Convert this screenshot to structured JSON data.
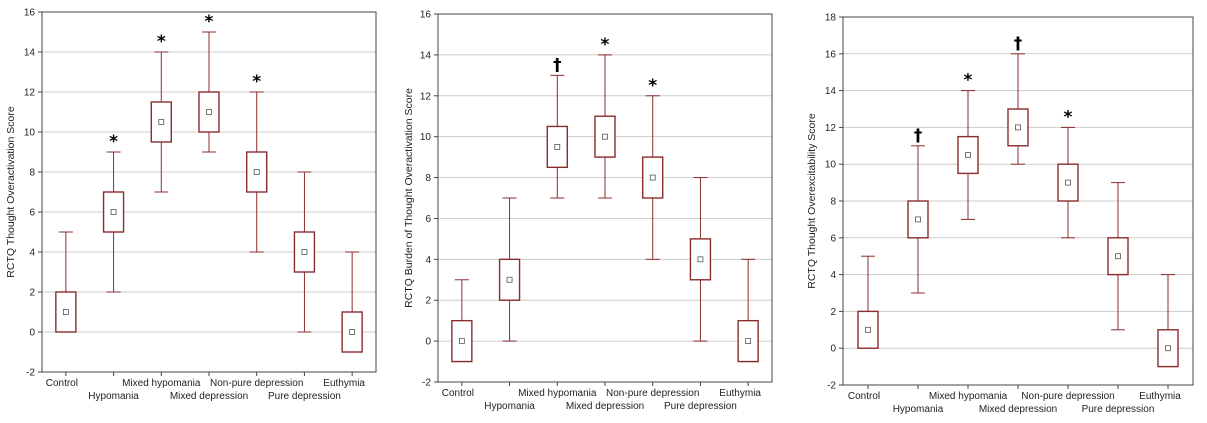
{
  "chart_data": [
    {
      "type": "box",
      "ylabel": "RCTQ Thought Overactivation Score",
      "ylim": [
        -2,
        16
      ],
      "yticks": [
        -2,
        0,
        2,
        4,
        6,
        8,
        10,
        12,
        14,
        16
      ],
      "categories": [
        "Control",
        "Hypomania",
        "Mixed hypomania",
        "Mixed depression",
        "Non-pure depression",
        "Pure depression",
        "Euthymia"
      ],
      "boxes": [
        {
          "min": 0,
          "q1": 0,
          "median": 1,
          "q3": 2,
          "max": 5,
          "annotation": ""
        },
        {
          "min": 2,
          "q1": 5,
          "median": 6,
          "q3": 7,
          "max": 9,
          "annotation": "*"
        },
        {
          "min": 7,
          "q1": 9.5,
          "median": 10.5,
          "q3": 11.5,
          "max": 14,
          "annotation": "*"
        },
        {
          "min": 9,
          "q1": 10,
          "median": 11,
          "q3": 12,
          "max": 15,
          "annotation": "*"
        },
        {
          "min": 4,
          "q1": 7,
          "median": 8,
          "q3": 9,
          "max": 12,
          "annotation": "*"
        },
        {
          "min": 0,
          "q1": 3,
          "median": 4,
          "q3": 5,
          "max": 8,
          "annotation": ""
        },
        {
          "min": -1,
          "q1": -1,
          "median": 0,
          "q3": 1,
          "max": 4,
          "annotation": ""
        }
      ],
      "grid": true,
      "colors": {
        "box": "#8b2c2c",
        "grid": "#cccccc",
        "axis": "#444444"
      }
    },
    {
      "type": "box",
      "ylabel": "RCTQ Burden of Thought Overactivation Score",
      "ylim": [
        -2,
        16
      ],
      "yticks": [
        -2,
        0,
        2,
        4,
        6,
        8,
        10,
        12,
        14,
        16
      ],
      "categories": [
        "Control",
        "Hypomania",
        "Mixed hypomania",
        "Mixed depression",
        "Non-pure depression",
        "Pure depression",
        "Euthymia"
      ],
      "boxes": [
        {
          "min": -1,
          "q1": -1,
          "median": 0,
          "q3": 1,
          "max": 3,
          "annotation": ""
        },
        {
          "min": 0,
          "q1": 2,
          "median": 3,
          "q3": 4,
          "max": 7,
          "annotation": ""
        },
        {
          "min": 7,
          "q1": 8.5,
          "median": 9.5,
          "q3": 10.5,
          "max": 13,
          "annotation": "†"
        },
        {
          "min": 7,
          "q1": 9,
          "median": 10,
          "q3": 11,
          "max": 14,
          "annotation": "*"
        },
        {
          "min": 4,
          "q1": 7,
          "median": 8,
          "q3": 9,
          "max": 12,
          "annotation": "*"
        },
        {
          "min": 0,
          "q1": 3,
          "median": 4,
          "q3": 5,
          "max": 8,
          "annotation": ""
        },
        {
          "min": -1,
          "q1": -1,
          "median": 0,
          "q3": 1,
          "max": 4,
          "annotation": ""
        }
      ],
      "grid": true,
      "colors": {
        "box": "#8b2c2c",
        "grid": "#cccccc",
        "axis": "#444444"
      }
    },
    {
      "type": "box",
      "ylabel": "RCTQ Thought Overexcitability Score",
      "ylim": [
        -2,
        18
      ],
      "yticks": [
        -2,
        0,
        2,
        4,
        6,
        8,
        10,
        12,
        14,
        16,
        18
      ],
      "categories": [
        "Control",
        "Hypomania",
        "Mixed hypomania",
        "Mixed depression",
        "Non-pure depression",
        "Pure depression",
        "Euthymia"
      ],
      "boxes": [
        {
          "min": 0,
          "q1": 0,
          "median": 1,
          "q3": 2,
          "max": 5,
          "annotation": ""
        },
        {
          "min": 3,
          "q1": 6,
          "median": 7,
          "q3": 8,
          "max": 11,
          "annotation": "†"
        },
        {
          "min": 7,
          "q1": 9.5,
          "median": 10.5,
          "q3": 11.5,
          "max": 14,
          "annotation": "*"
        },
        {
          "min": 10,
          "q1": 11,
          "median": 12,
          "q3": 13,
          "max": 16,
          "annotation": "†"
        },
        {
          "min": 6,
          "q1": 8,
          "median": 9,
          "q3": 10,
          "max": 12,
          "annotation": "*"
        },
        {
          "min": 1,
          "q1": 4,
          "median": 5,
          "q3": 6,
          "max": 9,
          "annotation": ""
        },
        {
          "min": -1,
          "q1": -1,
          "median": 0,
          "q3": 1,
          "max": 4,
          "annotation": ""
        }
      ],
      "grid": true,
      "colors": {
        "box": "#8b2c2c",
        "grid": "#cccccc",
        "axis": "#444444"
      }
    }
  ]
}
